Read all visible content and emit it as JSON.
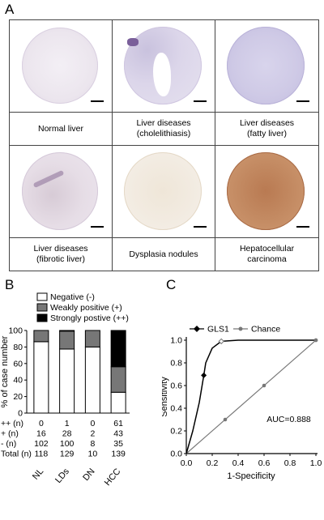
{
  "panel_a": {
    "letter": "A",
    "cores": [
      {
        "caption": "Normal liver",
        "stain": "normal"
      },
      {
        "caption": "Liver diseases\n(cholelithiasis)",
        "stain": "cholelithiasis"
      },
      {
        "caption": "Liver diseases\n(fatty liver)",
        "stain": "fatty"
      },
      {
        "caption": "Liver diseases\n(fibrotic liver)",
        "stain": "fibrotic"
      },
      {
        "caption": "Dysplasia nodules",
        "stain": "dysplasia"
      },
      {
        "caption": "Hepatocellular\ncarcinoma",
        "stain": "hcc"
      }
    ]
  },
  "panel_b": {
    "letter": "B",
    "legend": [
      "Negative (-)",
      "Weakly positive (+)",
      "Strongly postive (++)"
    ],
    "colors": {
      "negative": "#ffffff",
      "weak": "#777777",
      "strong": "#000000"
    },
    "ylabel": "% of case number",
    "yticks": [
      "0",
      "20",
      "40",
      "60",
      "80",
      "100"
    ],
    "row_labels": [
      "++ (n)",
      "+ (n)",
      "- (n)",
      "Total (n)"
    ],
    "table": [
      [
        "0",
        "1",
        "0",
        "61"
      ],
      [
        "16",
        "28",
        "2",
        "43"
      ],
      [
        "102",
        "100",
        "8",
        "35"
      ],
      [
        "118",
        "129",
        "10",
        "139"
      ]
    ],
    "categories": [
      "NL",
      "LDs",
      "DN",
      "HCC"
    ]
  },
  "panel_c": {
    "letter": "C",
    "legend": [
      "GLS1",
      "Chance"
    ],
    "ylabel": "Sensitivity",
    "xlabel": "1-Specificity",
    "xticks": [
      "0.0",
      "0.2",
      "0.4",
      "0.6",
      "0.8",
      "1.0"
    ],
    "yticks": [
      "0.0",
      "0.2",
      "0.4",
      "0.6",
      "0.8",
      "1.0"
    ],
    "auc_label": "AUC=0.888"
  },
  "chart_data": [
    {
      "type": "bar",
      "stacked": true,
      "percent": true,
      "categories": [
        "NL",
        "LDs",
        "DN",
        "HCC"
      ],
      "series": [
        {
          "name": "Negative (-)",
          "values": [
            86.4,
            77.5,
            80.0,
            25.2
          ]
        },
        {
          "name": "Weakly positive (+)",
          "values": [
            13.6,
            21.7,
            20.0,
            30.9
          ]
        },
        {
          "name": "Strongly postive (++)",
          "values": [
            0.0,
            0.8,
            0.0,
            43.9
          ]
        }
      ],
      "ylabel": "% of case number",
      "ylim": [
        0,
        100
      ],
      "legend": "top"
    },
    {
      "type": "line",
      "series": [
        {
          "name": "GLS1",
          "x": [
            0.0,
            0.05,
            0.1,
            0.135,
            0.15,
            0.2,
            0.27,
            0.4,
            0.6,
            1.0
          ],
          "y": [
            0.0,
            0.2,
            0.45,
            0.69,
            0.8,
            0.93,
            0.99,
            1.0,
            1.0,
            1.0
          ]
        },
        {
          "name": "Chance",
          "x": [
            0.0,
            0.3,
            0.6,
            1.0
          ],
          "y": [
            0.0,
            0.3,
            0.6,
            1.0
          ]
        }
      ],
      "xlabel": "1-Specificity",
      "ylabel": "Sensitivity",
      "xlim": [
        0,
        1
      ],
      "ylim": [
        0,
        1
      ],
      "annotation": "AUC=0.888",
      "legend": "top-left"
    }
  ]
}
